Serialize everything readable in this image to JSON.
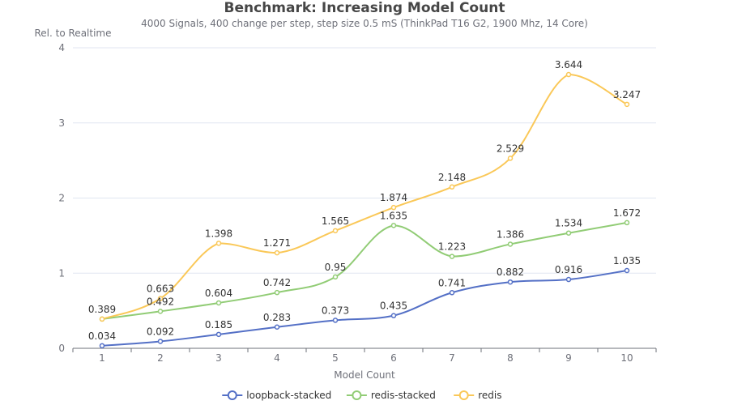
{
  "chart_data": {
    "type": "line",
    "title": "Benchmark: Increasing Model Count",
    "subtitle": "4000 Signals, 400 change per step, step size 0.5 mS (ThinkPad T16 G2, 1900 Mhz, 14 Core)",
    "xlabel": "Model Count",
    "ylabel": "Rel. to Realtime",
    "categories": [
      "1",
      "2",
      "3",
      "4",
      "5",
      "6",
      "7",
      "8",
      "9",
      "10"
    ],
    "ylim": [
      0,
      4
    ],
    "yticks": [
      "0",
      "1",
      "2",
      "3",
      "4"
    ],
    "grid": true,
    "legend_position": "bottom",
    "smooth": true,
    "series": [
      {
        "name": "loopback-stacked",
        "color": "#5470c6",
        "values": [
          0.034,
          0.092,
          0.185,
          0.283,
          0.373,
          0.435,
          0.741,
          0.882,
          0.916,
          1.035
        ],
        "labels": [
          "0.034",
          "0.092",
          "0.185",
          "0.283",
          "0.373",
          "0.435",
          "0.741",
          "0.882",
          "0.916",
          "1.035"
        ]
      },
      {
        "name": "redis-stacked",
        "color": "#91cc75",
        "values": [
          0.389,
          0.492,
          0.604,
          0.742,
          0.95,
          1.635,
          1.223,
          1.386,
          1.534,
          1.672
        ],
        "labels": [
          "",
          "0.492",
          "0.604",
          "0.742",
          "0.95",
          "1.635",
          "1.223",
          "1.386",
          "1.534",
          "1.672"
        ]
      },
      {
        "name": "redis",
        "color": "#fac858",
        "values": [
          0.389,
          0.663,
          1.398,
          1.271,
          1.565,
          1.874,
          2.148,
          2.529,
          3.644,
          3.247
        ],
        "labels": [
          "0.389",
          "0.663",
          "1.398",
          "1.271",
          "1.565",
          "1.874",
          "2.148",
          "2.529",
          "3.644",
          "3.247"
        ]
      }
    ]
  }
}
